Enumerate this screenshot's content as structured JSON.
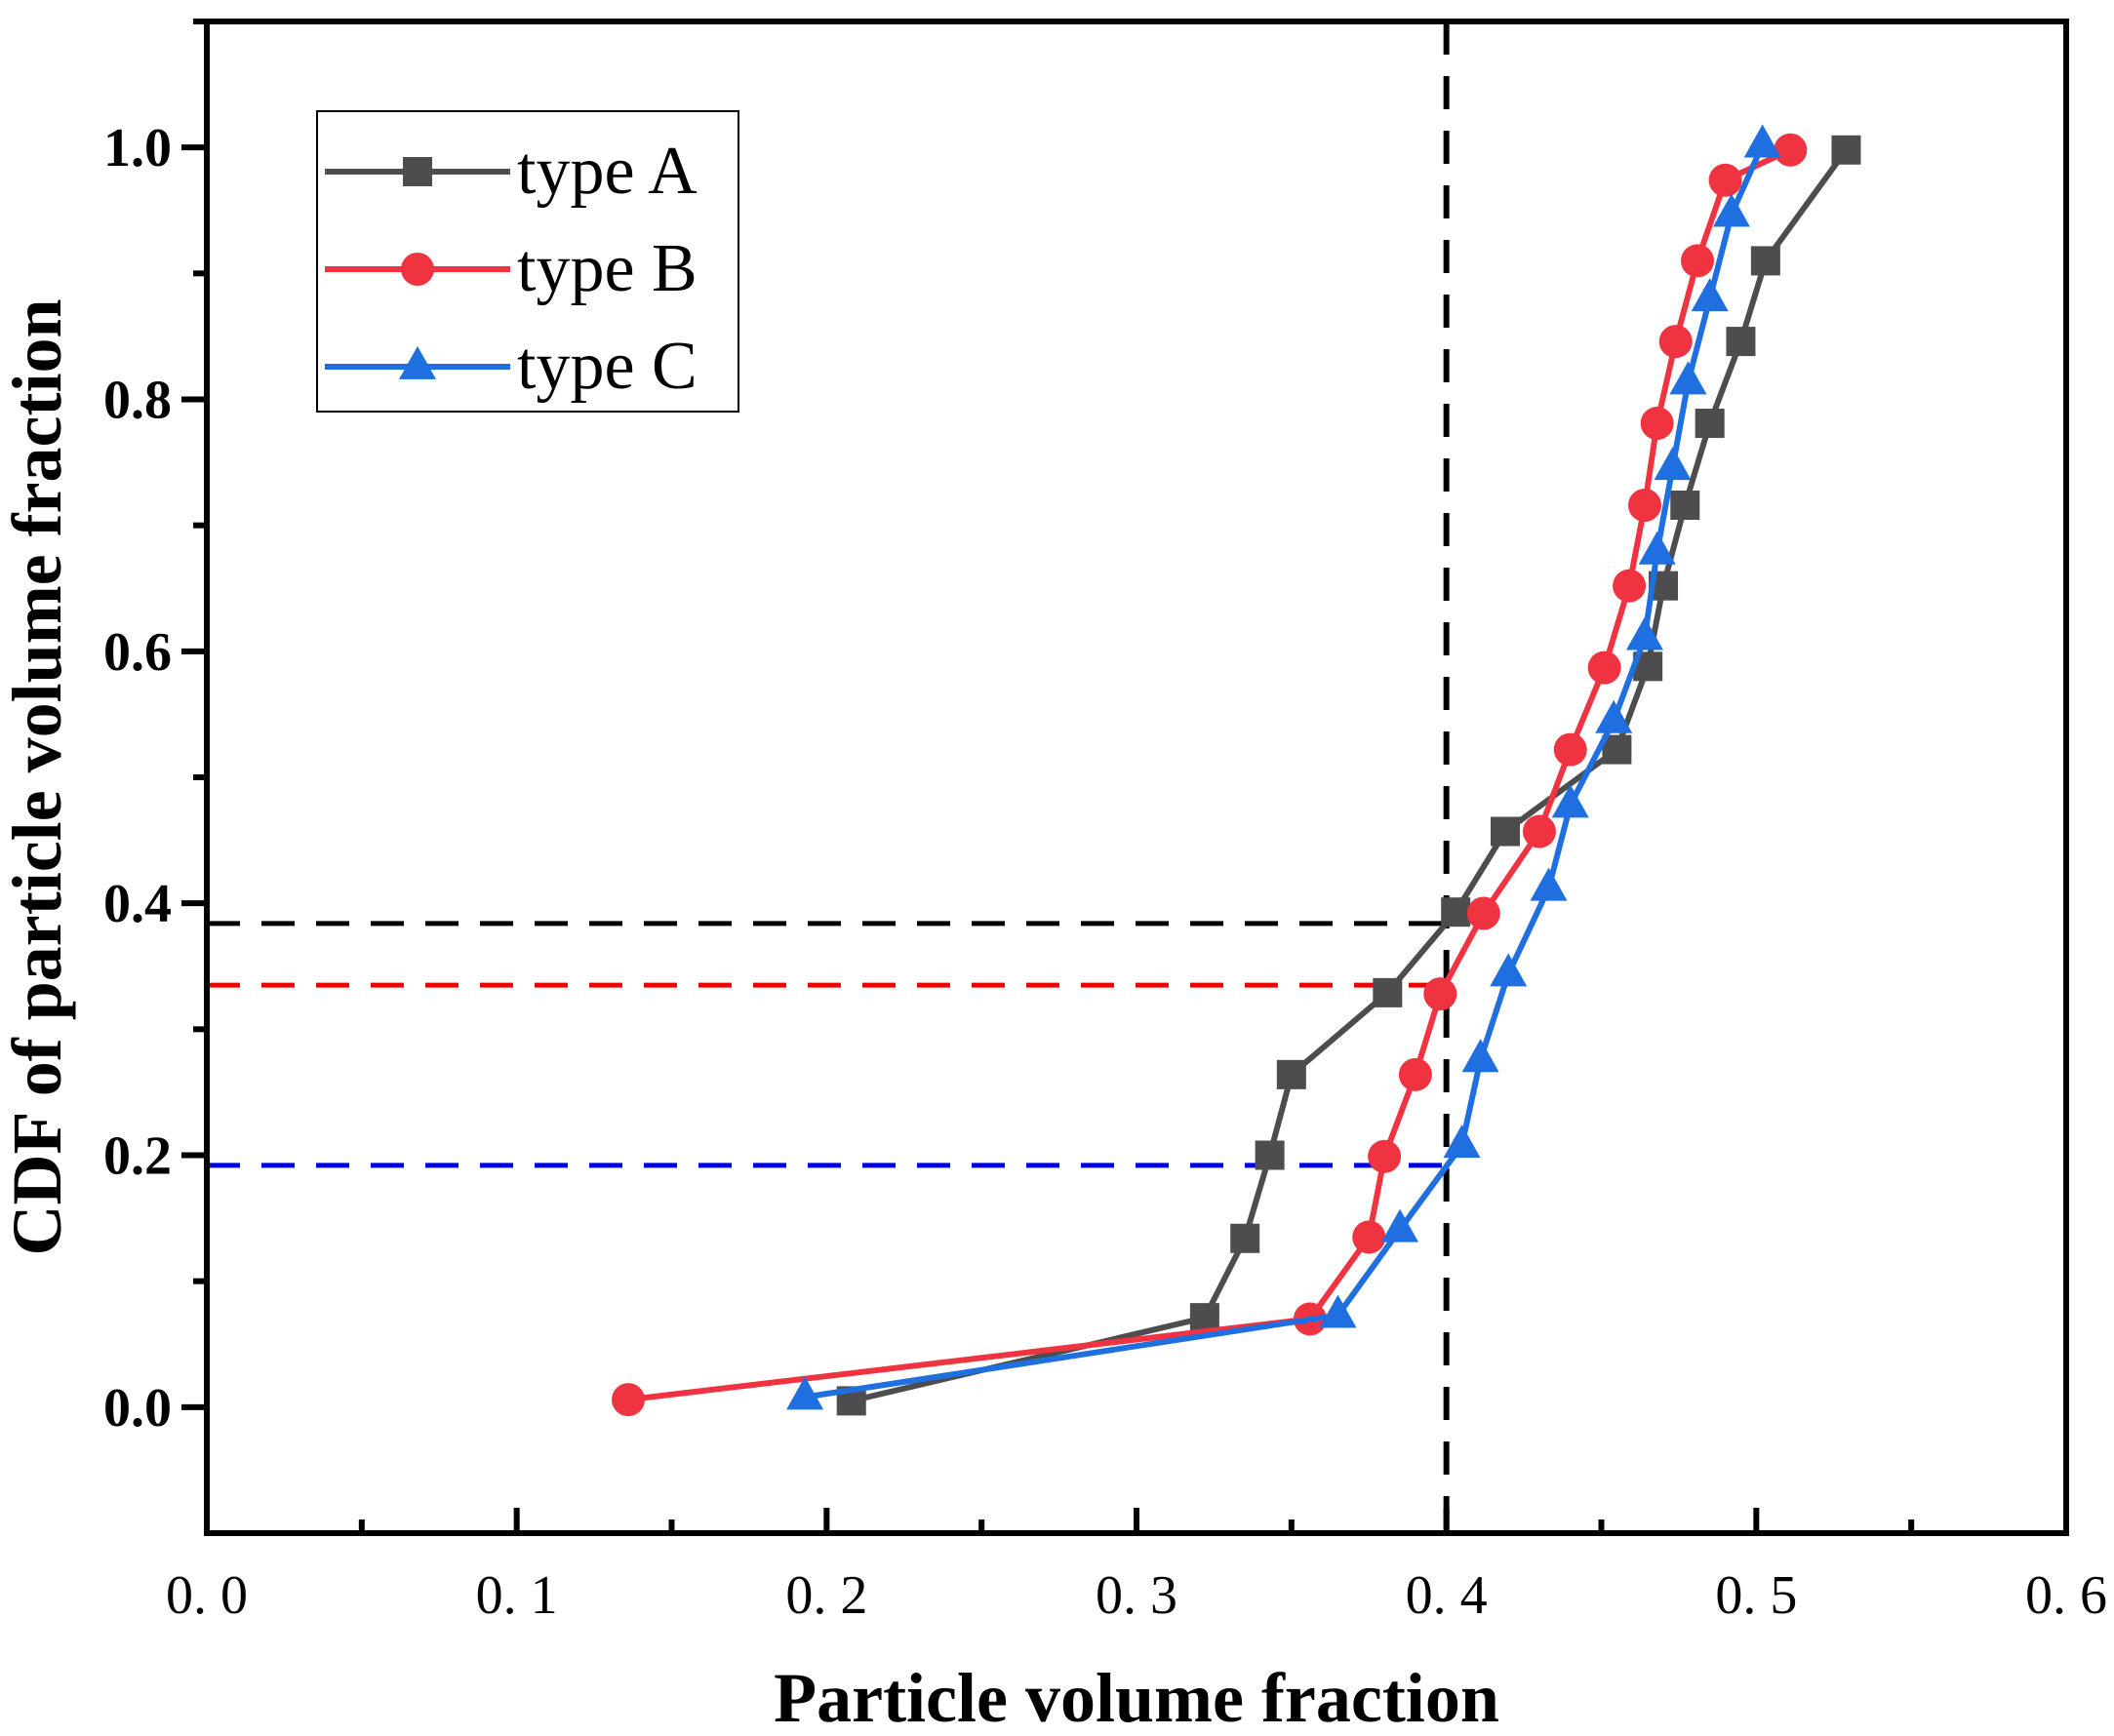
{
  "chart_data": {
    "type": "line",
    "title": "",
    "xlabel": "Particle volume fraction",
    "ylabel": "CDF of particle volume fraction",
    "xlim": [
      0.0,
      0.6
    ],
    "ylim": [
      -0.1,
      1.1
    ],
    "xticks": [
      0.0,
      0.1,
      0.2,
      0.3,
      0.4,
      0.5,
      0.6
    ],
    "xtick_labels": [
      "0. 0",
      "0. 1",
      "0. 2",
      "0. 3",
      "0. 4",
      "0. 5",
      "0. 6"
    ],
    "yticks": [
      0.0,
      0.2,
      0.4,
      0.6,
      0.8,
      1.0
    ],
    "ytick_labels": [
      "0.0",
      "0.2",
      "0.4",
      "0.6",
      "0.8",
      "1.0"
    ],
    "grid": false,
    "legend_position": "top-left",
    "series": [
      {
        "name": "type A",
        "color": "#4d4d4d",
        "marker": "square",
        "x": [
          0.208,
          0.322,
          0.335,
          0.343,
          0.35,
          0.381,
          0.403,
          0.419,
          0.455,
          0.465,
          0.47,
          0.477,
          0.485,
          0.495,
          0.503,
          0.529
        ],
        "y": [
          0.005,
          0.071,
          0.134,
          0.2,
          0.264,
          0.329,
          0.393,
          0.457,
          0.522,
          0.588,
          0.652,
          0.716,
          0.781,
          0.846,
          0.91,
          0.998
        ]
      },
      {
        "name": "type B",
        "color": "#ef3340",
        "marker": "circle",
        "x": [
          0.136,
          0.356,
          0.375,
          0.38,
          0.39,
          0.398,
          0.412,
          0.43,
          0.44,
          0.451,
          0.459,
          0.464,
          0.468,
          0.474,
          0.481,
          0.49,
          0.511
        ],
        "y": [
          0.006,
          0.07,
          0.135,
          0.199,
          0.264,
          0.328,
          0.392,
          0.457,
          0.522,
          0.587,
          0.652,
          0.716,
          0.781,
          0.846,
          0.91,
          0.974,
          0.998
        ]
      },
      {
        "name": "type C",
        "color": "#1f6fe0",
        "marker": "triangle",
        "x": [
          0.193,
          0.365,
          0.385,
          0.405,
          0.411,
          0.42,
          0.433,
          0.44,
          0.454,
          0.464,
          0.468,
          0.473,
          0.478,
          0.485,
          0.492,
          0.502
        ],
        "y": [
          0.008,
          0.073,
          0.141,
          0.208,
          0.276,
          0.344,
          0.412,
          0.478,
          0.545,
          0.611,
          0.679,
          0.746,
          0.814,
          0.88,
          0.947,
          1.002
        ]
      }
    ],
    "reference_lines": [
      {
        "orientation": "vertical",
        "x": 0.4,
        "color": "#000000"
      },
      {
        "orientation": "horizontal",
        "y": 0.384,
        "x_end": 0.4,
        "color": "#000000"
      },
      {
        "orientation": "horizontal",
        "y": 0.335,
        "x_end": 0.4,
        "color": "#ee0000"
      },
      {
        "orientation": "horizontal",
        "y": 0.192,
        "x_end": 0.4,
        "color": "#0000ee"
      }
    ]
  }
}
